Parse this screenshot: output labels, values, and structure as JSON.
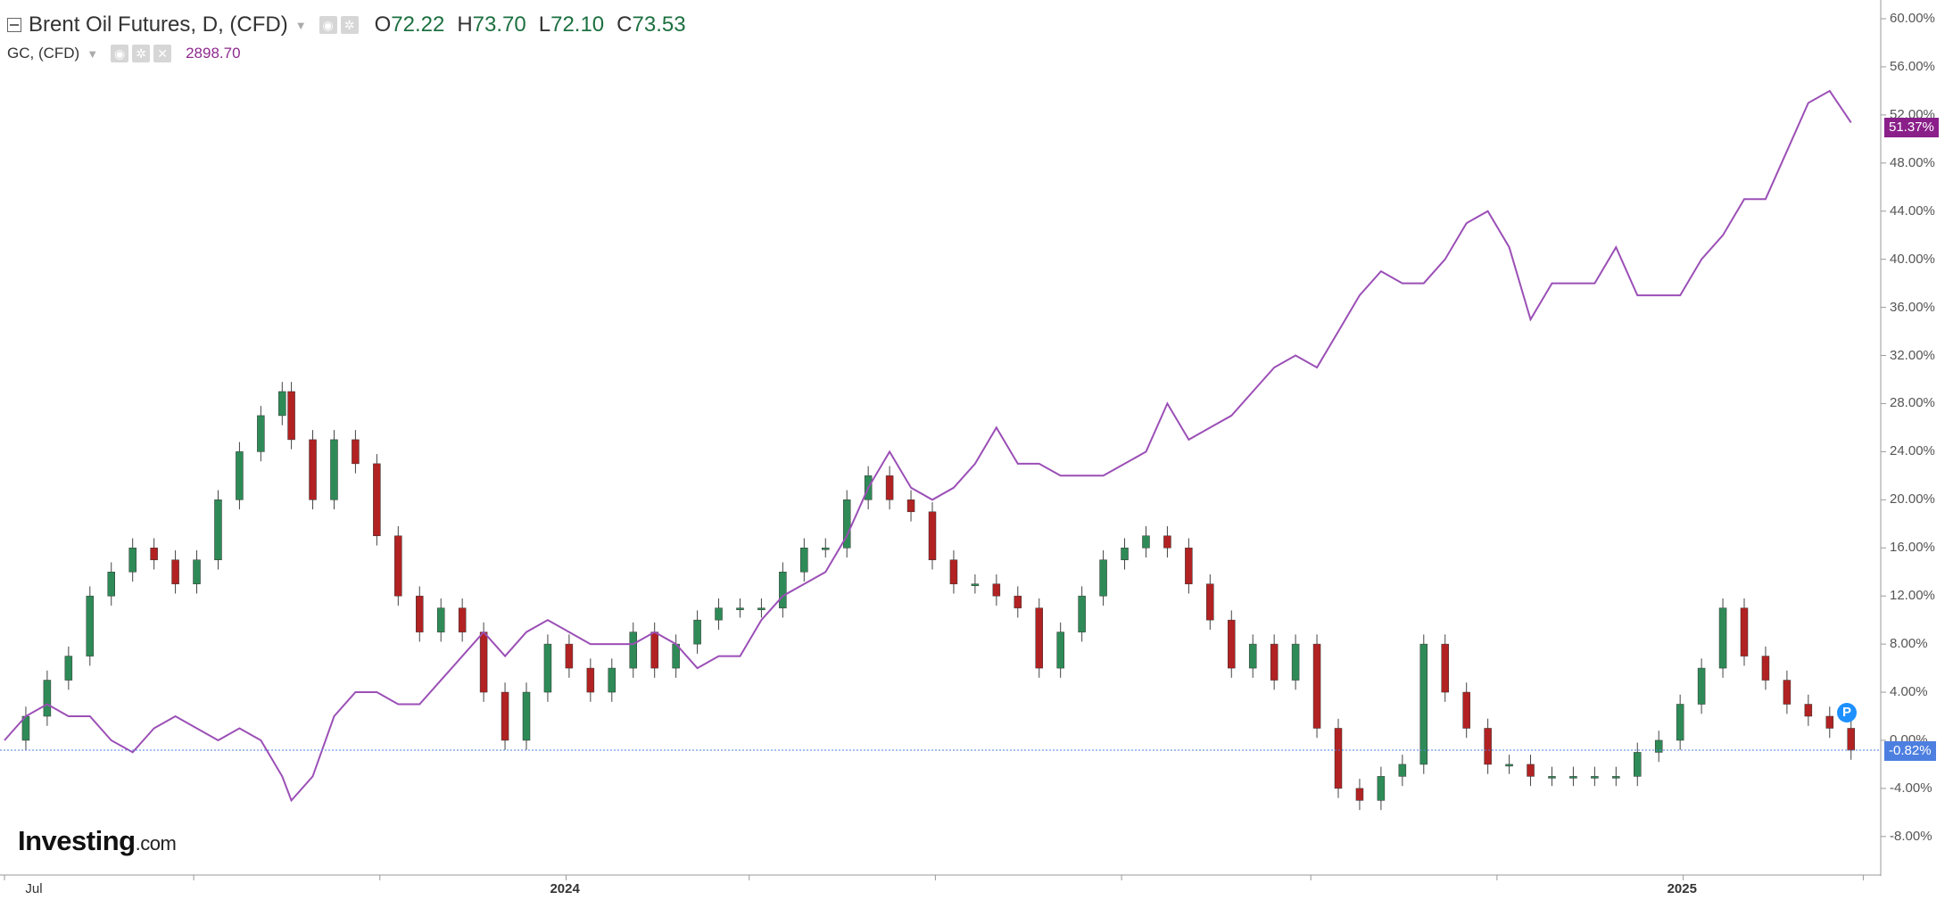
{
  "legend": {
    "main_title": "Brent Oil Futures, D, (CFD)",
    "open_label": "O",
    "open": "72.22",
    "high_label": "H",
    "high": "73.70",
    "low_label": "L",
    "low": "72.10",
    "close_label": "C",
    "close": "73.53",
    "sub_title": "GC, (CFD)",
    "sub_value": "2898.70"
  },
  "badges": {
    "gold": "51.37%",
    "brent": "-0.82%"
  },
  "logo": {
    "main": "Investing",
    "suffix": ".com"
  },
  "marker": {
    "label": "P"
  },
  "chart_data": {
    "type": "line",
    "x_axis_labels": [
      "Jul",
      "2024",
      "2025"
    ],
    "y_ticks": [
      "60.00%",
      "56.00%",
      "52.00%",
      "48.00%",
      "44.00%",
      "40.00%",
      "36.00%",
      "32.00%",
      "28.00%",
      "24.00%",
      "20.00%",
      "16.00%",
      "12.00%",
      "8.00%",
      "4.00%",
      "0.00%",
      "-4.00%",
      "-8.00%"
    ],
    "ylim": [
      -10,
      62
    ],
    "x_range": [
      "2023-07-01",
      "2025-02-28"
    ],
    "series": [
      {
        "name": "Brent Oil Futures, D, (CFD)",
        "style": "candlestick",
        "points": [
          [
            "2023-07-01",
            0
          ],
          [
            "2023-07-08",
            2
          ],
          [
            "2023-07-15",
            5
          ],
          [
            "2023-07-22",
            7
          ],
          [
            "2023-07-29",
            12
          ],
          [
            "2023-08-05",
            14
          ],
          [
            "2023-08-12",
            16
          ],
          [
            "2023-08-19",
            15
          ],
          [
            "2023-08-26",
            13
          ],
          [
            "2023-09-02",
            15
          ],
          [
            "2023-09-09",
            20
          ],
          [
            "2023-09-16",
            24
          ],
          [
            "2023-09-23",
            27
          ],
          [
            "2023-09-30",
            29
          ],
          [
            "2023-10-03",
            25
          ],
          [
            "2023-10-10",
            20
          ],
          [
            "2023-10-17",
            25
          ],
          [
            "2023-10-24",
            23
          ],
          [
            "2023-10-31",
            17
          ],
          [
            "2023-11-07",
            12
          ],
          [
            "2023-11-14",
            9
          ],
          [
            "2023-11-21",
            11
          ],
          [
            "2023-11-28",
            9
          ],
          [
            "2023-12-05",
            4
          ],
          [
            "2023-12-12",
            0
          ],
          [
            "2023-12-19",
            4
          ],
          [
            "2023-12-26",
            8
          ],
          [
            "2024-01-02",
            6
          ],
          [
            "2024-01-09",
            4
          ],
          [
            "2024-01-16",
            6
          ],
          [
            "2024-01-23",
            9
          ],
          [
            "2024-01-30",
            6
          ],
          [
            "2024-02-06",
            8
          ],
          [
            "2024-02-13",
            10
          ],
          [
            "2024-02-20",
            11
          ],
          [
            "2024-02-27",
            11
          ],
          [
            "2024-03-05",
            11
          ],
          [
            "2024-03-12",
            14
          ],
          [
            "2024-03-19",
            16
          ],
          [
            "2024-03-26",
            16
          ],
          [
            "2024-04-02",
            20
          ],
          [
            "2024-04-09",
            22
          ],
          [
            "2024-04-16",
            20
          ],
          [
            "2024-04-23",
            19
          ],
          [
            "2024-04-30",
            15
          ],
          [
            "2024-05-07",
            13
          ],
          [
            "2024-05-14",
            13
          ],
          [
            "2024-05-21",
            12
          ],
          [
            "2024-05-28",
            11
          ],
          [
            "2024-06-04",
            6
          ],
          [
            "2024-06-11",
            9
          ],
          [
            "2024-06-18",
            12
          ],
          [
            "2024-06-25",
            15
          ],
          [
            "2024-07-02",
            16
          ],
          [
            "2024-07-09",
            17
          ],
          [
            "2024-07-16",
            16
          ],
          [
            "2024-07-23",
            13
          ],
          [
            "2024-07-30",
            10
          ],
          [
            "2024-08-06",
            6
          ],
          [
            "2024-08-13",
            8
          ],
          [
            "2024-08-20",
            5
          ],
          [
            "2024-08-27",
            8
          ],
          [
            "2024-09-03",
            1
          ],
          [
            "2024-09-10",
            -4
          ],
          [
            "2024-09-17",
            -5
          ],
          [
            "2024-09-24",
            -3
          ],
          [
            "2024-10-01",
            -2
          ],
          [
            "2024-10-08",
            8
          ],
          [
            "2024-10-15",
            4
          ],
          [
            "2024-10-22",
            1
          ],
          [
            "2024-10-29",
            -2
          ],
          [
            "2024-11-05",
            -2
          ],
          [
            "2024-11-12",
            -3
          ],
          [
            "2024-11-19",
            -3
          ],
          [
            "2024-11-26",
            -3
          ],
          [
            "2024-12-03",
            -3
          ],
          [
            "2024-12-10",
            -3
          ],
          [
            "2024-12-17",
            -1
          ],
          [
            "2024-12-24",
            0
          ],
          [
            "2024-12-31",
            3
          ],
          [
            "2025-01-07",
            6
          ],
          [
            "2025-01-14",
            11
          ],
          [
            "2025-01-21",
            7
          ],
          [
            "2025-01-28",
            5
          ],
          [
            "2025-02-04",
            3
          ],
          [
            "2025-02-11",
            2
          ],
          [
            "2025-02-18",
            1
          ],
          [
            "2025-02-25",
            -0.82
          ]
        ]
      },
      {
        "name": "GC, (CFD)",
        "style": "line",
        "color": "#9b4fb6",
        "points": [
          [
            "2023-07-01",
            0
          ],
          [
            "2023-07-08",
            2
          ],
          [
            "2023-07-15",
            3
          ],
          [
            "2023-07-22",
            2
          ],
          [
            "2023-07-29",
            2
          ],
          [
            "2023-08-05",
            0
          ],
          [
            "2023-08-12",
            -1
          ],
          [
            "2023-08-19",
            1
          ],
          [
            "2023-08-26",
            2
          ],
          [
            "2023-09-02",
            1
          ],
          [
            "2023-09-09",
            0
          ],
          [
            "2023-09-16",
            1
          ],
          [
            "2023-09-23",
            0
          ],
          [
            "2023-09-30",
            -3
          ],
          [
            "2023-10-03",
            -5
          ],
          [
            "2023-10-10",
            -3
          ],
          [
            "2023-10-17",
            2
          ],
          [
            "2023-10-24",
            4
          ],
          [
            "2023-10-31",
            4
          ],
          [
            "2023-11-07",
            3
          ],
          [
            "2023-11-14",
            3
          ],
          [
            "2023-11-21",
            5
          ],
          [
            "2023-11-28",
            7
          ],
          [
            "2023-12-05",
            9
          ],
          [
            "2023-12-12",
            7
          ],
          [
            "2023-12-19",
            9
          ],
          [
            "2023-12-26",
            10
          ],
          [
            "2024-01-02",
            9
          ],
          [
            "2024-01-09",
            8
          ],
          [
            "2024-01-16",
            8
          ],
          [
            "2024-01-23",
            8
          ],
          [
            "2024-01-30",
            9
          ],
          [
            "2024-02-06",
            8
          ],
          [
            "2024-02-13",
            6
          ],
          [
            "2024-02-20",
            7
          ],
          [
            "2024-02-27",
            7
          ],
          [
            "2024-03-05",
            10
          ],
          [
            "2024-03-12",
            12
          ],
          [
            "2024-03-19",
            13
          ],
          [
            "2024-03-26",
            14
          ],
          [
            "2024-04-02",
            17
          ],
          [
            "2024-04-09",
            21
          ],
          [
            "2024-04-16",
            24
          ],
          [
            "2024-04-23",
            21
          ],
          [
            "2024-04-30",
            20
          ],
          [
            "2024-05-07",
            21
          ],
          [
            "2024-05-14",
            23
          ],
          [
            "2024-05-21",
            26
          ],
          [
            "2024-05-28",
            23
          ],
          [
            "2024-06-04",
            23
          ],
          [
            "2024-06-11",
            22
          ],
          [
            "2024-06-18",
            22
          ],
          [
            "2024-06-25",
            22
          ],
          [
            "2024-07-02",
            23
          ],
          [
            "2024-07-09",
            24
          ],
          [
            "2024-07-16",
            28
          ],
          [
            "2024-07-23",
            25
          ],
          [
            "2024-07-30",
            26
          ],
          [
            "2024-08-06",
            27
          ],
          [
            "2024-08-13",
            29
          ],
          [
            "2024-08-20",
            31
          ],
          [
            "2024-08-27",
            32
          ],
          [
            "2024-09-03",
            31
          ],
          [
            "2024-09-10",
            34
          ],
          [
            "2024-09-17",
            37
          ],
          [
            "2024-09-24",
            39
          ],
          [
            "2024-10-01",
            38
          ],
          [
            "2024-10-08",
            38
          ],
          [
            "2024-10-15",
            40
          ],
          [
            "2024-10-22",
            43
          ],
          [
            "2024-10-29",
            44
          ],
          [
            "2024-11-05",
            41
          ],
          [
            "2024-11-12",
            35
          ],
          [
            "2024-11-19",
            38
          ],
          [
            "2024-11-26",
            38
          ],
          [
            "2024-12-03",
            38
          ],
          [
            "2024-12-10",
            41
          ],
          [
            "2024-12-17",
            37
          ],
          [
            "2024-12-24",
            37
          ],
          [
            "2024-12-31",
            37
          ],
          [
            "2025-01-07",
            40
          ],
          [
            "2025-01-14",
            42
          ],
          [
            "2025-01-21",
            45
          ],
          [
            "2025-01-28",
            45
          ],
          [
            "2025-02-04",
            49
          ],
          [
            "2025-02-11",
            53
          ],
          [
            "2025-02-18",
            54
          ],
          [
            "2025-02-25",
            51.37
          ]
        ]
      }
    ],
    "reference_line": -0.82,
    "grid": false
  }
}
